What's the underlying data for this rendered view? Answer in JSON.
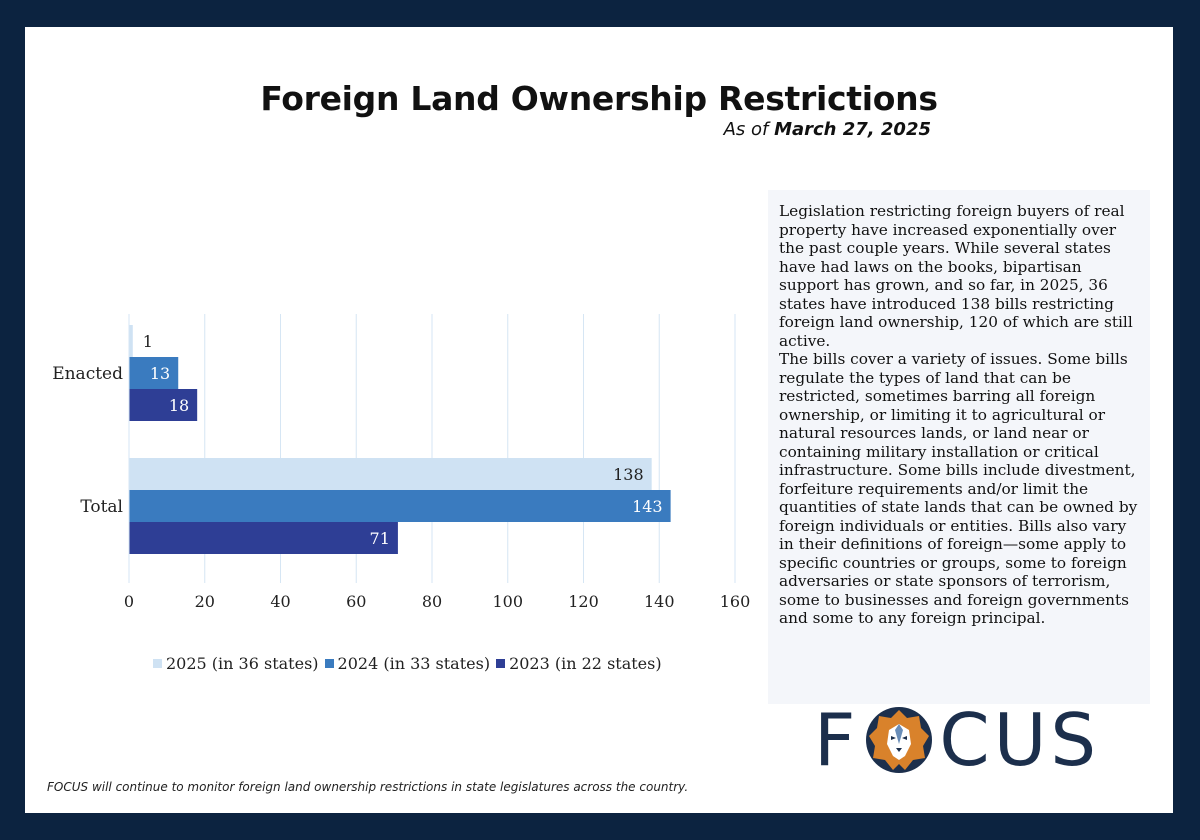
{
  "title": "Foreign Land Ownership Restrictions",
  "subtitle_prefix": "As of",
  "subtitle_date": "March 27, 2025",
  "chart_data": {
    "type": "bar",
    "orientation": "horizontal",
    "categories": [
      "Enacted",
      "Total"
    ],
    "series": [
      {
        "name": "2025 (in 36 states)",
        "values": [
          1,
          138
        ],
        "color": "#cfe2f3"
      },
      {
        "name": "2024 (in 33 states)",
        "values": [
          13,
          143
        ],
        "color": "#3a7bbf"
      },
      {
        "name": "2023 (in 22 states)",
        "values": [
          18,
          71
        ],
        "color": "#2e3e95"
      }
    ],
    "xlim": [
      0,
      160
    ],
    "xticks": [
      0,
      20,
      40,
      60,
      80,
      100,
      120,
      140,
      160
    ],
    "grid": true,
    "legend": "bottom"
  },
  "sidebar": {
    "paragraph1": "Legislation restricting foreign buyers of real property have increased exponentially over the past couple years. While several states have had laws on the books, bipartisan support has grown, and so far, in 2025, 36 states have introduced 138 bills restricting foreign land ownership, 120 of which are still active.",
    "paragraph2": "The bills cover a variety of issues. Some bills regulate the types of land that can be restricted, sometimes barring all foreign ownership, or limiting it to agricultural or natural resources lands, or land near or containing military installation or critical infrastructure. Some bills include divestment, forfeiture requirements and/or limit the quantities of state lands that can be owned by foreign individuals or entities. Bills also vary in their definitions of foreign—some apply to specific countries or groups, some to foreign adversaries or state sponsors of terrorism, some to businesses and foreign governments and some to any foreign principal."
  },
  "logo": {
    "before": "F",
    "after": "CUS",
    "icon": "lion-head-icon"
  },
  "footer": "FOCUS will continue to monitor foreign land ownership restrictions in state legislatures across the country."
}
